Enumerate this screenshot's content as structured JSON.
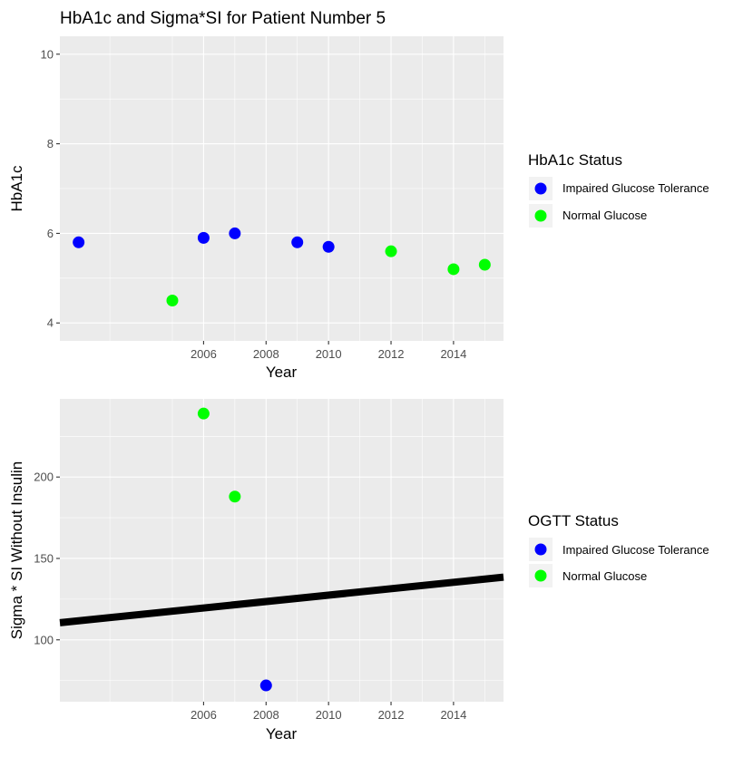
{
  "figure": {
    "title": "HbA1c and Sigma*SI for Patient Number 5"
  },
  "colors": {
    "impaired": "#0000ff",
    "normal": "#00ff00",
    "regression_line": "#000000"
  },
  "chart_data": [
    {
      "type": "scatter",
      "xlabel": "Year",
      "ylabel": "HbA1c",
      "xlim": [
        2001.4,
        2015.6
      ],
      "ylim": [
        3.6,
        10.4
      ],
      "x_major_ticks": [
        2006,
        2008,
        2010,
        2012,
        2014
      ],
      "x_minor_ticks": [
        2003,
        2005,
        2007,
        2009,
        2011,
        2013,
        2015
      ],
      "y_major_ticks": [
        4,
        6,
        8,
        10
      ],
      "y_minor_ticks": [
        5,
        7,
        9
      ],
      "grid": true,
      "legend": {
        "title": "HbA1c Status",
        "position": "right",
        "entries": [
          {
            "label": "Impaired Glucose Tolerance",
            "color": "#0000ff"
          },
          {
            "label": "Normal Glucose",
            "color": "#00ff00"
          }
        ]
      },
      "points": [
        {
          "x": 2002,
          "y": 5.8,
          "status": "Impaired Glucose Tolerance"
        },
        {
          "x": 2005,
          "y": 4.5,
          "status": "Normal Glucose"
        },
        {
          "x": 2006,
          "y": 5.9,
          "status": "Impaired Glucose Tolerance"
        },
        {
          "x": 2007,
          "y": 6.0,
          "status": "Impaired Glucose Tolerance"
        },
        {
          "x": 2009,
          "y": 5.8,
          "status": "Impaired Glucose Tolerance"
        },
        {
          "x": 2010,
          "y": 5.7,
          "status": "Impaired Glucose Tolerance"
        },
        {
          "x": 2012,
          "y": 5.6,
          "status": "Normal Glucose"
        },
        {
          "x": 2014,
          "y": 5.2,
          "status": "Normal Glucose"
        },
        {
          "x": 2015,
          "y": 5.3,
          "status": "Normal Glucose"
        }
      ]
    },
    {
      "type": "scatter",
      "xlabel": "Year",
      "ylabel": "Sigma * SI Without Insulin",
      "xlim": [
        2001.4,
        2015.6
      ],
      "ylim": [
        62,
        248
      ],
      "x_major_ticks": [
        2006,
        2008,
        2010,
        2012,
        2014
      ],
      "x_minor_ticks": [
        2003,
        2005,
        2007,
        2009,
        2011,
        2013,
        2015
      ],
      "y_major_ticks": [
        100,
        150,
        200
      ],
      "y_minor_ticks": [
        75,
        125,
        175,
        225
      ],
      "grid": true,
      "legend": {
        "title": "OGTT Status",
        "position": "right",
        "entries": [
          {
            "label": "Impaired Glucose Tolerance",
            "color": "#0000ff"
          },
          {
            "label": "Normal Glucose",
            "color": "#00ff00"
          }
        ]
      },
      "points": [
        {
          "x": 2006,
          "y": 239,
          "status": "Normal Glucose"
        },
        {
          "x": 2007,
          "y": 188,
          "status": "Normal Glucose"
        },
        {
          "x": 2008,
          "y": 72,
          "status": "Impaired Glucose Tolerance"
        }
      ],
      "trend_line": {
        "x": [
          2001.4,
          2015.6
        ],
        "y": [
          110.5,
          138.5
        ]
      }
    }
  ]
}
